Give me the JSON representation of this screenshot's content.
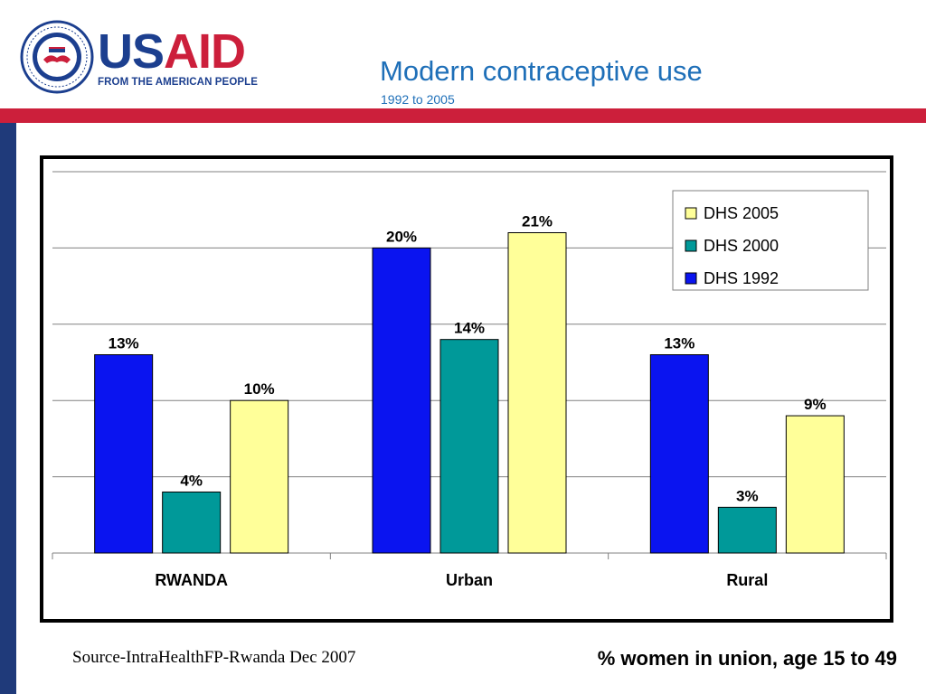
{
  "brand": {
    "name_part1": "US",
    "name_part2": "AID",
    "tagline": "FROM THE AMERICAN PEOPLE",
    "seal_icon": "usaid-seal-icon",
    "colors": {
      "blue": "#1c3f8f",
      "red": "#cc1f3b"
    }
  },
  "header": {
    "title": "Modern contraceptive use",
    "subtitle": "1992 to 2005"
  },
  "footer": {
    "source": "Source-IntraHealthFP-Rwanda Dec 2007",
    "note": "% women in union, age 15 to 49"
  },
  "chart_data": {
    "type": "bar",
    "title": "",
    "xlabel": "",
    "ylabel": "",
    "categories": [
      "RWANDA",
      "Urban",
      "Rural"
    ],
    "series": [
      {
        "name": "DHS 1992",
        "color": "#0a14f0",
        "values": [
          13,
          20,
          13
        ],
        "labels": [
          "13%",
          "20%",
          "13%"
        ]
      },
      {
        "name": "DHS 2000",
        "color": "#009999",
        "values": [
          4,
          14,
          3
        ],
        "labels": [
          "4%",
          "14%",
          "3%"
        ]
      },
      {
        "name": "DHS 2005",
        "color": "#ffff99",
        "values": [
          10,
          21,
          9
        ],
        "labels": [
          "10%",
          "21%",
          "9%"
        ]
      }
    ],
    "legend_order": [
      "DHS 2005",
      "DHS 2000",
      "DHS 1992"
    ],
    "legend_position": "top-right",
    "ylim": [
      0,
      25
    ],
    "grid": true,
    "value_format": "percent"
  }
}
